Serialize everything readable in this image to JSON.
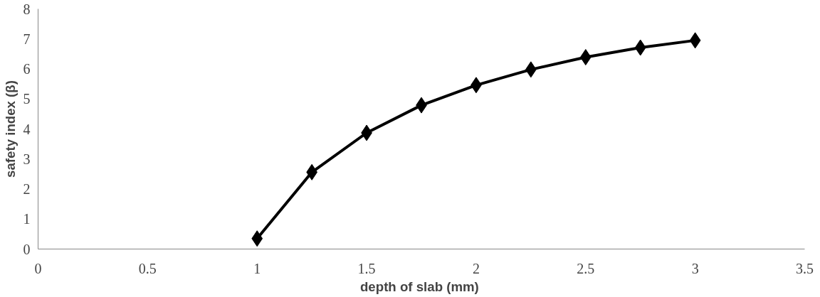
{
  "chart_data": {
    "type": "line",
    "xlabel": "depth  of slab (mm)",
    "ylabel": "safety index (β)",
    "x": [
      1,
      1.25,
      1.5,
      1.75,
      2,
      2.25,
      2.5,
      2.75,
      3
    ],
    "series": [
      {
        "color": "#000000",
        "values": [
          0.35,
          2.56,
          3.87,
          4.79,
          5.46,
          5.98,
          6.39,
          6.71,
          6.95
        ]
      }
    ],
    "xlim": [
      0,
      3.5
    ],
    "xticks": [
      0,
      0.5,
      1,
      1.5,
      2,
      2.5,
      3,
      3.5
    ],
    "ylim": [
      0,
      8
    ],
    "yticks": [
      0,
      1,
      2,
      3,
      4,
      5,
      6,
      7,
      8
    ],
    "grid": false,
    "marker": "diamond",
    "line_style": "solid"
  }
}
